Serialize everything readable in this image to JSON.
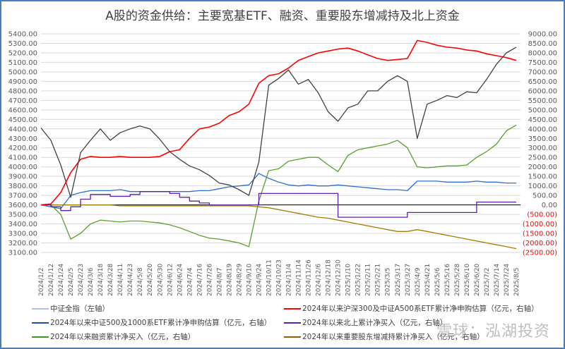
{
  "title": "A股的资金供给：主要宽基ETF、融资、重要股东增减持及北上资金",
  "watermark": "雪球：泓湖投资",
  "colors": {
    "index": "#404040",
    "index_gap": "#a9c4eb",
    "hs300_a500": "#ff0000",
    "zz500_1000": "#2e6fd0",
    "margin": "#5aa02c",
    "northbound": "#5b1fa8",
    "shareholder": "#a67c00",
    "zero_line": "#000000",
    "grid": "#d9d9d9",
    "frame": "#4a7bc8"
  },
  "legend": [
    {
      "label": "中证全指（左轴）",
      "color": "#a9c4eb"
    },
    {
      "label": "2024年以来沪深300及中证A500系ETF累计净申购估算（亿元，右轴）",
      "color": "#ff0000"
    },
    {
      "label": "2024年以来中证500及1000系ETF累计净申购估算（亿元，右轴）",
      "color": "#1f4e9c"
    },
    {
      "label": "2024年以来北上累计净买入（亿元，右轴）",
      "color": "#5b1fa8"
    },
    {
      "label": "2024年以来融资累计净买入（亿元，右轴）",
      "color": "#3a9a1a"
    },
    {
      "label": "2024年以来重要股东增减持累计净买入（亿元，右轴）",
      "color": "#a05a00"
    }
  ],
  "chart_data": {
    "type": "line",
    "title": "A股的资金供给：主要宽基ETF、融资、重要股东增减持及北上资金",
    "xlabel": "",
    "ylabel_left": "中证全指",
    "ylabel_right": "亿元",
    "ylim_left": [
      3100,
      5400
    ],
    "ylim_right": [
      -2500,
      9000
    ],
    "grid": true,
    "legend_position": "bottom",
    "left_ticks": [
      "5400.00",
      "5300.00",
      "5200.00",
      "5100.00",
      "5000.00",
      "4900.00",
      "4800.00",
      "4700.00",
      "4600.00",
      "4500.00",
      "4400.00",
      "4300.00",
      "4200.00",
      "4100.00",
      "4000.00",
      "3900.00",
      "3800.00",
      "3700.00",
      "3600.00",
      "3500.00",
      "3400.00",
      "3300.00",
      "3200.00",
      "3100.00"
    ],
    "right_ticks": [
      "9000.00",
      "8500.00",
      "8000.00",
      "7500.00",
      "7000.00",
      "6500.00",
      "6000.00",
      "5500.00",
      "5000.00",
      "4500.00",
      "4000.00",
      "3500.00",
      "3000.00",
      "2500.00",
      "2000.00",
      "1500.00",
      "1000.00",
      "500.00",
      "0.00",
      "(500.00)",
      "(1000.00)",
      "(1500.00)",
      "(2000.00)",
      "(2500.00)"
    ],
    "categories": [
      "2024/1/2",
      "2024/1/12",
      "2024/1/24",
      "2024/2/5",
      "2024/2/23",
      "2024/3/6",
      "2024/3/18",
      "2024/3/28",
      "2024/4/11",
      "2024/4/23",
      "2024/5/8",
      "2024/5/20",
      "2024/5/30",
      "2024/6/12",
      "2024/6/24",
      "2024/7/4",
      "2024/7/16",
      "2024/7/26",
      "2024/8/7",
      "2024/8/19",
      "2024/8/29",
      "2024/9/10",
      "2024/9/24",
      "2024/10/11",
      "2024/10/23",
      "2024/11/4",
      "2024/11/14",
      "2024/11/26",
      "2024/12/6",
      "2024/12/18",
      "2024/12/30",
      "2025/1/10",
      "2025/1/22",
      "2025/2/11",
      "2025/2/21",
      "2025/3/5",
      "2025/3/17",
      "2025/3/27",
      "2025/4/9",
      "2025/4/21",
      "2025/5/6",
      "2025/5/16",
      "2025/5/28",
      "2025/6/10",
      "2025/6/20",
      "2025/7/2",
      "2025/7/14",
      "2025/7/24",
      "2025/8/5"
    ],
    "series": [
      {
        "name": "中证全指（左轴）",
        "axis": "left",
        "values": [
          4410,
          4280,
          4020,
          3680,
          4150,
          4280,
          4400,
          4280,
          4360,
          4400,
          4430,
          4400,
          4290,
          4160,
          4080,
          4010,
          3970,
          3910,
          3830,
          3810,
          3760,
          3700,
          4050,
          4860,
          4930,
          5020,
          4870,
          4920,
          4780,
          4580,
          4480,
          4620,
          4660,
          4800,
          4800,
          4900,
          4960,
          4900,
          4300,
          4660,
          4700,
          4750,
          4730,
          4790,
          4780,
          4920,
          5080,
          5200,
          5260
        ]
      },
      {
        "name": "2024年以来沪深300及中证A500系ETF累计净申购估算（亿元，右轴）",
        "axis": "right",
        "values": [
          0,
          50,
          650,
          1700,
          2400,
          2550,
          2500,
          2500,
          2550,
          2500,
          2500,
          2500,
          2550,
          2800,
          2900,
          3500,
          4000,
          4100,
          4300,
          4700,
          4900,
          5300,
          6400,
          6800,
          6900,
          7200,
          7600,
          7800,
          8000,
          8100,
          8200,
          8250,
          8100,
          7900,
          7700,
          7600,
          7650,
          7700,
          8650,
          8550,
          8400,
          8300,
          8250,
          8150,
          8100,
          7950,
          7850,
          7750,
          7600
        ]
      },
      {
        "name": "2024年以来中证500及1000系ETF累计净申购估算（亿元，右轴）",
        "axis": "right",
        "values": [
          0,
          -100,
          -200,
          500,
          650,
          750,
          750,
          750,
          800,
          700,
          700,
          700,
          700,
          700,
          700,
          700,
          750,
          750,
          850,
          950,
          1000,
          1050,
          1650,
          1400,
          1200,
          1050,
          1000,
          1050,
          1000,
          1000,
          1050,
          1000,
          950,
          900,
          850,
          800,
          800,
          750,
          1250,
          1250,
          1250,
          1200,
          1200,
          1200,
          1250,
          1200,
          1200,
          1150,
          1150
        ]
      },
      {
        "name": "2024年以来北上累计净买入（亿元，右轴）",
        "axis": "right",
        "values": [
          0,
          -100,
          -300,
          -100,
          300,
          550,
          550,
          450,
          450,
          550,
          700,
          700,
          700,
          600,
          400,
          200,
          100,
          0,
          0,
          0,
          0,
          0,
          600,
          600,
          600,
          600,
          600,
          600,
          600,
          600,
          -650,
          -650,
          -650,
          -650,
          -650,
          -650,
          -650,
          -400,
          -400,
          -400,
          -400,
          -400,
          -400,
          -400,
          150,
          150,
          150,
          150,
          150
        ]
      },
      {
        "name": "2024年以来融资累计净买入（亿元，右轴）",
        "axis": "right",
        "values": [
          0,
          0,
          -500,
          -1800,
          -1500,
          -1000,
          -800,
          -850,
          -900,
          -850,
          -850,
          -900,
          -950,
          -1050,
          -1200,
          -1400,
          -1600,
          -1750,
          -1800,
          -1900,
          -2000,
          -2200,
          200,
          1800,
          1900,
          2300,
          2400,
          2500,
          2500,
          2100,
          1750,
          2600,
          2900,
          3000,
          3100,
          3200,
          3400,
          3000,
          2000,
          1950,
          2000,
          2050,
          2050,
          2100,
          2500,
          2800,
          3200,
          3900,
          4200
        ]
      },
      {
        "name": "2024年以来重要股东增减持累计净买入（亿元，右轴）",
        "axis": "right",
        "values": [
          0,
          0,
          0,
          0,
          0,
          0,
          0,
          0,
          -50,
          -50,
          -50,
          -50,
          -50,
          -50,
          -50,
          -50,
          -50,
          -50,
          -50,
          -50,
          -50,
          -50,
          -100,
          -150,
          -250,
          -350,
          -450,
          -550,
          -650,
          -700,
          -800,
          -900,
          -1000,
          -1100,
          -1200,
          -1300,
          -1400,
          -1400,
          -1300,
          -1400,
          -1500,
          -1600,
          -1700,
          -1800,
          -1900,
          -2000,
          -2100,
          -2200,
          -2300
        ]
      }
    ]
  }
}
